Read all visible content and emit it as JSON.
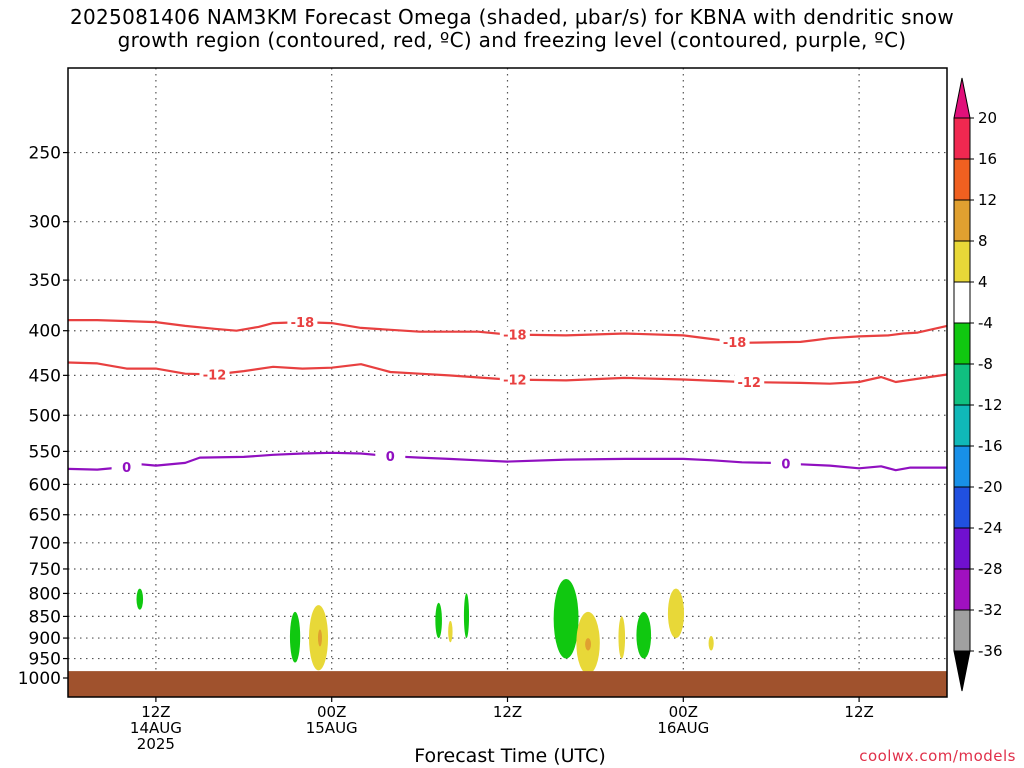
{
  "title": {
    "line1": "2025081406 NAM3KM Forecast Omega (shaded, µbar/s) for KBNA with dendritic snow",
    "line2": "growth region (contoured, red, ºC) and freezing level (contoured, purple, ºC)"
  },
  "xaxis_title": "Forecast Time (UTC)",
  "credit": "coolwx.com/models",
  "chart_data": {
    "type": "heatmap",
    "title": "2025081406 NAM3KM Forecast Omega (shaded, µbar/s) for KBNA with dendritic snow growth region (contoured, red, ºC) and freezing level (contoured, purple, ºC)",
    "xlabel": "Forecast Time (UTC)",
    "ylabel": "",
    "x_unit": "hour",
    "xlim": [
      6,
      66
    ],
    "y_levels": [
      250,
      300,
      350,
      400,
      450,
      500,
      550,
      600,
      650,
      700,
      750,
      800,
      850,
      900,
      950,
      1000
    ],
    "ylim": [
      1000,
      200
    ],
    "y_log": true,
    "grid": true,
    "x_ticks": [
      {
        "x": 12,
        "lines": [
          "12Z",
          "14AUG",
          "2025"
        ]
      },
      {
        "x": 24,
        "lines": [
          "00Z",
          "15AUG"
        ]
      },
      {
        "x": 36,
        "lines": [
          "12Z"
        ]
      },
      {
        "x": 48,
        "lines": [
          "00Z",
          "16AUG"
        ]
      },
      {
        "x": 60,
        "lines": [
          "12Z"
        ]
      }
    ],
    "colorbar": {
      "labels": [
        "20",
        "16",
        "12",
        "8",
        "4",
        "-4",
        "-8",
        "-12",
        "-16",
        "-20",
        "-24",
        "-28",
        "-32",
        "-36"
      ],
      "colors": [
        "#f02850",
        "#f06020",
        "#e0a030",
        "#e8d838",
        "#ffffff",
        "#10c810",
        "#10c080",
        "#10b8b8",
        "#1890e8",
        "#2050e0",
        "#7010d0",
        "#a010c0",
        "#a0a0a0"
      ],
      "top_color": "#e0107a",
      "bottom_color": "#000000"
    },
    "contours": [
      {
        "name": "-18",
        "color": "#e84040",
        "label_x": [
          22,
          36.5,
          51.5
        ],
        "points": [
          [
            6,
            389
          ],
          [
            8,
            389
          ],
          [
            12,
            391
          ],
          [
            14,
            395
          ],
          [
            16,
            398
          ],
          [
            17.5,
            400
          ],
          [
            19,
            396
          ],
          [
            20,
            392
          ],
          [
            22,
            391
          ],
          [
            24,
            392
          ],
          [
            26,
            397
          ],
          [
            30,
            401
          ],
          [
            34,
            401
          ],
          [
            36,
            404
          ],
          [
            40,
            405
          ],
          [
            44,
            403
          ],
          [
            48,
            405
          ],
          [
            50,
            409
          ],
          [
            52,
            413
          ],
          [
            56,
            412
          ],
          [
            57,
            410
          ],
          [
            58,
            408
          ],
          [
            60,
            406
          ],
          [
            62,
            405
          ],
          [
            63,
            403
          ],
          [
            64,
            402
          ],
          [
            66,
            395
          ]
        ]
      },
      {
        "name": "-12",
        "color": "#e84040",
        "label_x": [
          16,
          36.5,
          52.5
        ],
        "points": [
          [
            6,
            435
          ],
          [
            8,
            436
          ],
          [
            10,
            442
          ],
          [
            12,
            442
          ],
          [
            14,
            448
          ],
          [
            16,
            449
          ],
          [
            18,
            445
          ],
          [
            20,
            440
          ],
          [
            22,
            442
          ],
          [
            24,
            441
          ],
          [
            26,
            437
          ],
          [
            28,
            446
          ],
          [
            30,
            448
          ],
          [
            32,
            450
          ],
          [
            36,
            455
          ],
          [
            40,
            456
          ],
          [
            44,
            453
          ],
          [
            48,
            455
          ],
          [
            52,
            458
          ],
          [
            56,
            459
          ],
          [
            58,
            460
          ],
          [
            60,
            458
          ],
          [
            61.5,
            452
          ],
          [
            62.5,
            458
          ],
          [
            66,
            449
          ]
        ]
      },
      {
        "name": "0",
        "color": "#9010c0",
        "label_x": [
          10,
          28,
          55
        ],
        "points": [
          [
            6,
            576
          ],
          [
            8,
            577
          ],
          [
            10,
            573
          ],
          [
            11,
            569
          ],
          [
            12,
            571
          ],
          [
            14,
            567
          ],
          [
            15,
            559
          ],
          [
            18,
            558
          ],
          [
            20,
            555
          ],
          [
            22,
            553
          ],
          [
            24,
            552
          ],
          [
            26,
            553
          ],
          [
            28,
            557
          ],
          [
            30,
            559
          ],
          [
            32,
            561
          ],
          [
            34,
            563
          ],
          [
            36,
            565
          ],
          [
            40,
            562
          ],
          [
            44,
            561
          ],
          [
            48,
            561
          ],
          [
            50,
            563
          ],
          [
            52,
            566
          ],
          [
            54,
            567
          ],
          [
            56,
            569
          ],
          [
            58,
            571
          ],
          [
            60,
            575
          ],
          [
            61.5,
            572
          ],
          [
            62.5,
            578
          ],
          [
            63.5,
            574
          ],
          [
            66,
            574
          ]
        ]
      }
    ],
    "cells": [
      {
        "color": "#10c810",
        "x": 10.9,
        "width": 0.45,
        "top": 790,
        "bottom": 835
      },
      {
        "color": "#10c810",
        "x": 21.5,
        "width": 0.7,
        "top": 840,
        "bottom": 960
      },
      {
        "color": "#e8d838",
        "x": 23.1,
        "width": 1.3,
        "top": 825,
        "bottom": 980
      },
      {
        "color": "#e0a030",
        "x": 23.2,
        "width": 0.25,
        "top": 880,
        "bottom": 920
      },
      {
        "color": "#10c810",
        "x": 31.3,
        "width": 0.45,
        "top": 820,
        "bottom": 900
      },
      {
        "color": "#e8d838",
        "x": 32.1,
        "width": 0.3,
        "top": 860,
        "bottom": 910
      },
      {
        "color": "#10c810",
        "x": 33.2,
        "width": 0.35,
        "top": 800,
        "bottom": 900
      },
      {
        "color": "#10c810",
        "x": 40.0,
        "width": 1.7,
        "top": 770,
        "bottom": 950
      },
      {
        "color": "#e8d838",
        "x": 41.5,
        "width": 1.6,
        "top": 840,
        "bottom": 990
      },
      {
        "color": "#e0a030",
        "x": 41.5,
        "width": 0.4,
        "top": 900,
        "bottom": 930
      },
      {
        "color": "#e8d838",
        "x": 43.8,
        "width": 0.45,
        "top": 850,
        "bottom": 950
      },
      {
        "color": "#10c810",
        "x": 45.3,
        "width": 1.0,
        "top": 840,
        "bottom": 950
      },
      {
        "color": "#e8d838",
        "x": 47.5,
        "width": 1.1,
        "top": 790,
        "bottom": 900
      },
      {
        "color": "#e8d838",
        "x": 49.9,
        "width": 0.35,
        "top": 895,
        "bottom": 930
      }
    ],
    "ground": {
      "color": "#a0522d",
      "top": 982
    }
  }
}
